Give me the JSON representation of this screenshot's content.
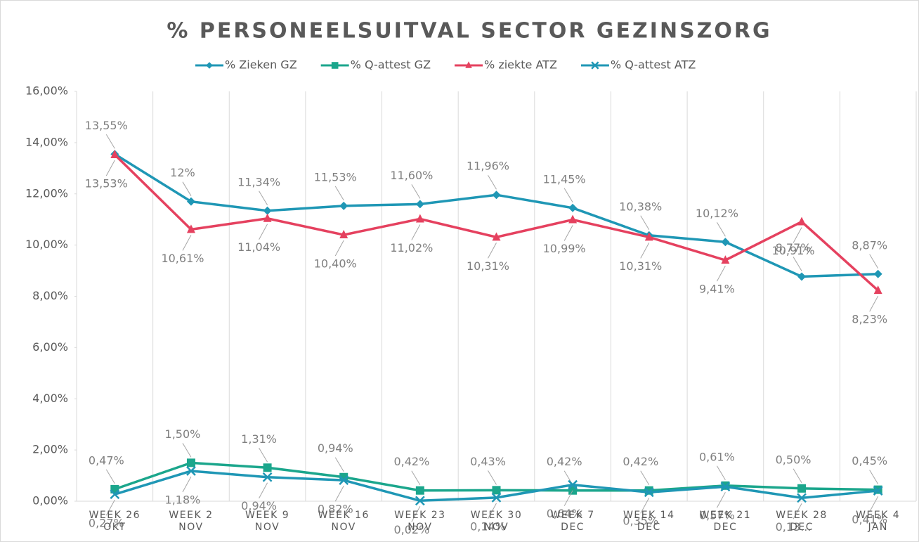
{
  "chart_data": {
    "type": "line",
    "title": "% PERSONEELSUITVAL SECTOR GEZINSZORG",
    "categories": [
      "WEEK 26\nOKT",
      "WEEK 2\nNOV",
      "WEEK 9\nNOV",
      "WEEK 16\nNOV",
      "WEEK 23\nNOV",
      "WEEK 30\nNOV",
      "WEEK 7\nDEC",
      "WEEK 14\nDEC",
      "WEEK 21\nDEC",
      "WEEK 28\nDEC",
      "WEEK 4\nJAN"
    ],
    "series": [
      {
        "name": "% Zieken GZ",
        "color": "#1f97b5",
        "marker": "diamond",
        "values": [
          13.55,
          11.7,
          11.34,
          11.53,
          11.6,
          11.96,
          11.45,
          10.38,
          10.12,
          8.77,
          8.87
        ],
        "value_labels": [
          "13,55%",
          "12%",
          "11,34%",
          "11,53%",
          "11,60%",
          "11,96%",
          "11,45%",
          "10,38%",
          "10,12%",
          "8,77%",
          "8,87%"
        ]
      },
      {
        "name": "% Q-attest GZ",
        "color": "#1ba68c",
        "marker": "square",
        "values": [
          0.47,
          1.5,
          1.31,
          0.94,
          0.42,
          0.43,
          0.42,
          0.42,
          0.61,
          0.5,
          0.45
        ],
        "value_labels": [
          "0,47%",
          "1,50%",
          "1,31%",
          "0,94%",
          "0,42%",
          "0,43%",
          "0,42%",
          "0,42%",
          "0,61%",
          "0,50%",
          "0,45%"
        ]
      },
      {
        "name": "% ziekte ATZ",
        "color": "#e5415f",
        "marker": "triangle",
        "values": [
          13.53,
          10.61,
          11.04,
          10.4,
          11.02,
          10.31,
          10.99,
          10.31,
          9.41,
          10.91,
          8.23
        ],
        "value_labels": [
          "13,53%",
          "10,61%",
          "11,04%",
          "10,40%",
          "11,02%",
          "10,31%",
          "10,99%",
          "10,31%",
          "9,41%",
          "10,91%",
          "8,23%"
        ]
      },
      {
        "name": "% Q-attest ATZ",
        "color": "#1f97b5",
        "marker": "x",
        "values": [
          0.27,
          1.18,
          0.94,
          0.82,
          0.02,
          0.14,
          0.64,
          0.35,
          0.57,
          0.13,
          0.41
        ],
        "value_labels": [
          "0,27%",
          "1,18%",
          "0,94%",
          "0,82%",
          "0,02%",
          "0,14%",
          "0,64%",
          "0,35%",
          "0,57%",
          "0,13...",
          "0,41%"
        ]
      }
    ],
    "ylim": [
      0,
      16
    ],
    "yticks": [
      {
        "value": 0,
        "label": "0,00%"
      },
      {
        "value": 2,
        "label": "2,00%"
      },
      {
        "value": 4,
        "label": "4,00%"
      },
      {
        "value": 6,
        "label": "6,00%"
      },
      {
        "value": 8,
        "label": "8,00%"
      },
      {
        "value": 10,
        "label": "10,00%"
      },
      {
        "value": 12,
        "label": "12,00%"
      },
      {
        "value": 14,
        "label": "14,00%"
      },
      {
        "value": 16,
        "label": "16,00%"
      }
    ],
    "grid": true
  }
}
